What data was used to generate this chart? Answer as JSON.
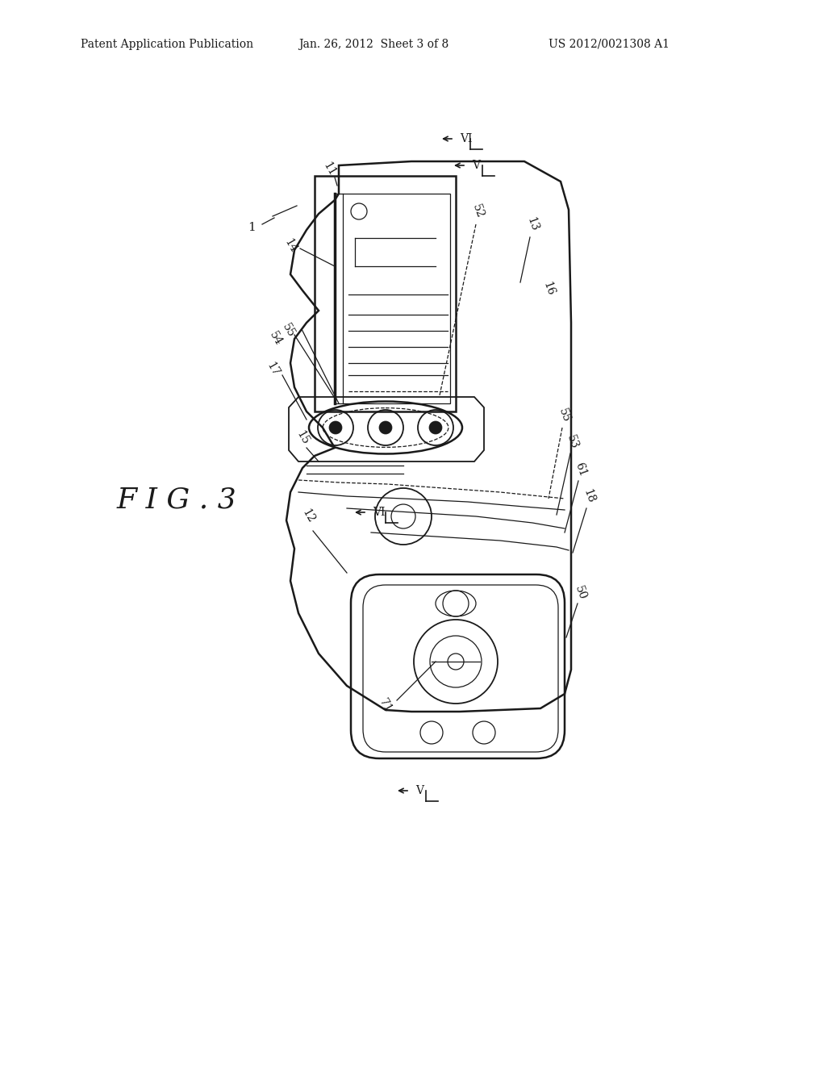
{
  "bg_color": "#ffffff",
  "line_color": "#1a1a1a",
  "header_left": "Patent Application Publication",
  "header_mid": "Jan. 26, 2012  Sheet 3 of 8",
  "header_right": "US 2012/0021308 A1",
  "fig_label": "FIG. 3"
}
